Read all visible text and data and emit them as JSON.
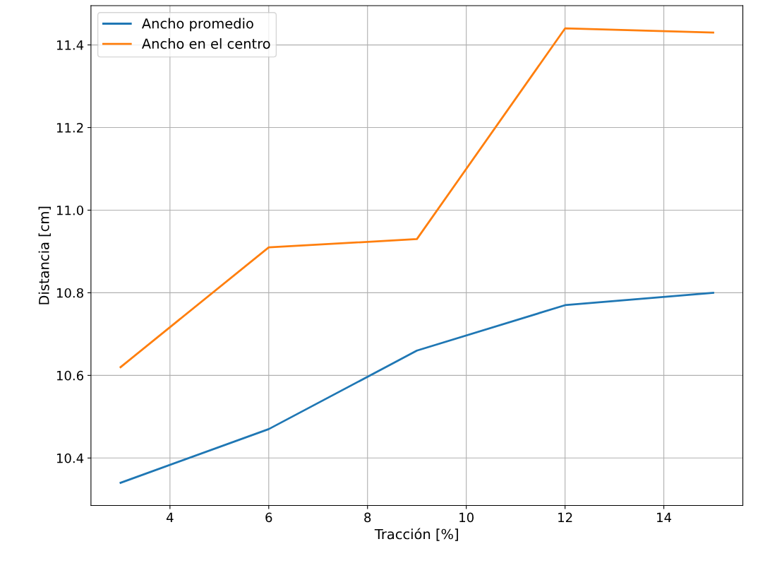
{
  "chart_data": {
    "type": "line",
    "xlabel": "Tracción [%]",
    "ylabel": "Distancia [cm]",
    "x": [
      3,
      6,
      9,
      12,
      15
    ],
    "series": [
      {
        "name": "Ancho promedio",
        "color": "#1f77b4",
        "values": [
          10.34,
          10.47,
          10.66,
          10.77,
          10.8
        ]
      },
      {
        "name": "Ancho en el centro",
        "color": "#ff7f0e",
        "values": [
          10.62,
          10.91,
          10.93,
          11.44,
          11.43
        ]
      }
    ],
    "xlim": [
      2.4,
      15.6
    ],
    "xticks": [
      4,
      6,
      8,
      10,
      12,
      14
    ],
    "ylim": [
      10.285,
      11.495
    ],
    "yticks": [
      {
        "value": 10.4,
        "label": "10.4"
      },
      {
        "value": 10.6,
        "label": "10.6"
      },
      {
        "value": 10.8,
        "label": "10.8"
      },
      {
        "value": 11.0,
        "label": "11.0"
      },
      {
        "value": 11.2,
        "label": "11.2"
      },
      {
        "value": 11.4,
        "label": "11.4"
      }
    ],
    "grid": true,
    "legend": "top left"
  }
}
